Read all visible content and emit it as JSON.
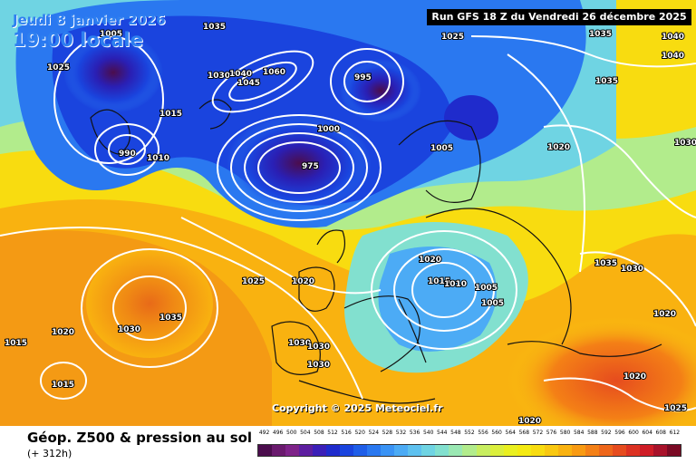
{
  "header": {
    "run": "Run GFS 18 Z du Vendredi 26 décembre 2025",
    "date_line1": "Jeudi 8 janvier 2026",
    "date_line2": "19:00 locale"
  },
  "copyright": "Copyright © 2025 Meteociel.fr",
  "footer": {
    "title": "Géop. Z500 & pression au sol",
    "subtitle": "(+ 312h)"
  },
  "scale": {
    "ticks": [
      "492",
      "496",
      "500",
      "504",
      "508",
      "512",
      "516",
      "520",
      "524",
      "528",
      "532",
      "536",
      "540",
      "544",
      "548",
      "552",
      "556",
      "560",
      "564",
      "568",
      "572",
      "576",
      "580",
      "584",
      "588",
      "592",
      "596",
      "600",
      "604",
      "608",
      "612"
    ],
    "colors": [
      "#4b0d4d",
      "#6a1a6e",
      "#7e2389",
      "#5d1ea0",
      "#3b1fb8",
      "#1f2bcc",
      "#1a44de",
      "#1f5ee8",
      "#2a78f0",
      "#3a93f5",
      "#4cabf5",
      "#5ec1ef",
      "#6fd4e3",
      "#82e0cf",
      "#9ae8b3",
      "#b2ec8c",
      "#c8ee60",
      "#dbef3c",
      "#eaf020",
      "#f4ea12",
      "#f8dc10",
      "#f9c810",
      "#f9b210",
      "#f89a12",
      "#f48016",
      "#ee661a",
      "#e64c1e",
      "#dc3222",
      "#cf1c26",
      "#a8122a",
      "#7a0a24"
    ]
  },
  "pressure_labels": [
    "1005",
    "1025",
    "1035",
    "1030",
    "1040",
    "1045",
    "1060",
    "995",
    "1015",
    "1000",
    "990",
    "975",
    "1010",
    "1020",
    "1040",
    "1035",
    "1030",
    "1025",
    "1005",
    "1020",
    "1035",
    "1030",
    "1015",
    "1020",
    "1030",
    "1020",
    "1015",
    "1025",
    "1020",
    "1005",
    "1005",
    "1010",
    "1030",
    "1030",
    "1030",
    "1020",
    "1020",
    "1015",
    "1025",
    "1035",
    "1035",
    "1040"
  ]
}
